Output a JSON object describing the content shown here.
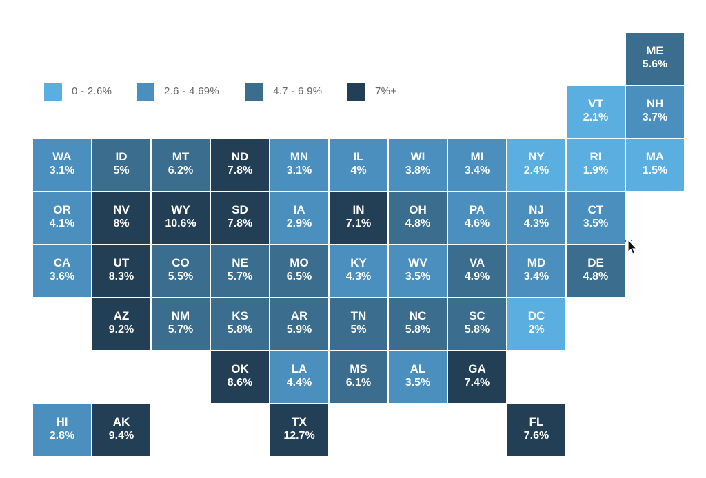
{
  "colors": {
    "bin1": "#5aaee0",
    "bin2": "#4a8fbd",
    "bin3": "#3a6d8e",
    "bin4": "#233f56"
  },
  "legend": [
    {
      "label": "0 - 2.6%",
      "bin": "bin1"
    },
    {
      "label": "2.6 - 4.69%",
      "bin": "bin2"
    },
    {
      "label": "4.7 - 6.9%",
      "bin": "bin3"
    },
    {
      "label": "7%+",
      "bin": "bin4"
    }
  ],
  "states": [
    {
      "abbr": "ME",
      "value": "5.6%",
      "col": 10,
      "row": 0,
      "bin": "bin3"
    },
    {
      "abbr": "VT",
      "value": "2.1%",
      "col": 9,
      "row": 1,
      "bin": "bin1"
    },
    {
      "abbr": "NH",
      "value": "3.7%",
      "col": 10,
      "row": 1,
      "bin": "bin2"
    },
    {
      "abbr": "WA",
      "value": "3.1%",
      "col": 0,
      "row": 2,
      "bin": "bin2"
    },
    {
      "abbr": "ID",
      "value": "5%",
      "col": 1,
      "row": 2,
      "bin": "bin3"
    },
    {
      "abbr": "MT",
      "value": "6.2%",
      "col": 2,
      "row": 2,
      "bin": "bin3"
    },
    {
      "abbr": "ND",
      "value": "7.8%",
      "col": 3,
      "row": 2,
      "bin": "bin4"
    },
    {
      "abbr": "MN",
      "value": "3.1%",
      "col": 4,
      "row": 2,
      "bin": "bin2"
    },
    {
      "abbr": "IL",
      "value": "4%",
      "col": 5,
      "row": 2,
      "bin": "bin2"
    },
    {
      "abbr": "WI",
      "value": "3.8%",
      "col": 6,
      "row": 2,
      "bin": "bin2"
    },
    {
      "abbr": "MI",
      "value": "3.4%",
      "col": 7,
      "row": 2,
      "bin": "bin2"
    },
    {
      "abbr": "NY",
      "value": "2.4%",
      "col": 8,
      "row": 2,
      "bin": "bin1"
    },
    {
      "abbr": "RI",
      "value": "1.9%",
      "col": 9,
      "row": 2,
      "bin": "bin1"
    },
    {
      "abbr": "MA",
      "value": "1.5%",
      "col": 10,
      "row": 2,
      "bin": "bin1"
    },
    {
      "abbr": "OR",
      "value": "4.1%",
      "col": 0,
      "row": 3,
      "bin": "bin2"
    },
    {
      "abbr": "NV",
      "value": "8%",
      "col": 1,
      "row": 3,
      "bin": "bin4"
    },
    {
      "abbr": "WY",
      "value": "10.6%",
      "col": 2,
      "row": 3,
      "bin": "bin4"
    },
    {
      "abbr": "SD",
      "value": "7.8%",
      "col": 3,
      "row": 3,
      "bin": "bin4"
    },
    {
      "abbr": "IA",
      "value": "2.9%",
      "col": 4,
      "row": 3,
      "bin": "bin2"
    },
    {
      "abbr": "IN",
      "value": "7.1%",
      "col": 5,
      "row": 3,
      "bin": "bin4"
    },
    {
      "abbr": "OH",
      "value": "4.8%",
      "col": 6,
      "row": 3,
      "bin": "bin3"
    },
    {
      "abbr": "PA",
      "value": "4.6%",
      "col": 7,
      "row": 3,
      "bin": "bin2"
    },
    {
      "abbr": "NJ",
      "value": "4.3%",
      "col": 8,
      "row": 3,
      "bin": "bin2"
    },
    {
      "abbr": "CT",
      "value": "3.5%",
      "col": 9,
      "row": 3,
      "bin": "bin2"
    },
    {
      "abbr": "CA",
      "value": "3.6%",
      "col": 0,
      "row": 4,
      "bin": "bin2"
    },
    {
      "abbr": "UT",
      "value": "8.3%",
      "col": 1,
      "row": 4,
      "bin": "bin4"
    },
    {
      "abbr": "CO",
      "value": "5.5%",
      "col": 2,
      "row": 4,
      "bin": "bin3"
    },
    {
      "abbr": "NE",
      "value": "5.7%",
      "col": 3,
      "row": 4,
      "bin": "bin3"
    },
    {
      "abbr": "MO",
      "value": "6.5%",
      "col": 4,
      "row": 4,
      "bin": "bin3"
    },
    {
      "abbr": "KY",
      "value": "4.3%",
      "col": 5,
      "row": 4,
      "bin": "bin2"
    },
    {
      "abbr": "WV",
      "value": "3.5%",
      "col": 6,
      "row": 4,
      "bin": "bin2"
    },
    {
      "abbr": "VA",
      "value": "4.9%",
      "col": 7,
      "row": 4,
      "bin": "bin3"
    },
    {
      "abbr": "MD",
      "value": "3.4%",
      "col": 8,
      "row": 4,
      "bin": "bin2"
    },
    {
      "abbr": "DE",
      "value": "4.8%",
      "col": 9,
      "row": 4,
      "bin": "bin3"
    },
    {
      "abbr": "AZ",
      "value": "9.2%",
      "col": 1,
      "row": 5,
      "bin": "bin4"
    },
    {
      "abbr": "NM",
      "value": "5.7%",
      "col": 2,
      "row": 5,
      "bin": "bin3"
    },
    {
      "abbr": "KS",
      "value": "5.8%",
      "col": 3,
      "row": 5,
      "bin": "bin3"
    },
    {
      "abbr": "AR",
      "value": "5.9%",
      "col": 4,
      "row": 5,
      "bin": "bin3"
    },
    {
      "abbr": "TN",
      "value": "5%",
      "col": 5,
      "row": 5,
      "bin": "bin3"
    },
    {
      "abbr": "NC",
      "value": "5.8%",
      "col": 6,
      "row": 5,
      "bin": "bin3"
    },
    {
      "abbr": "SC",
      "value": "5.8%",
      "col": 7,
      "row": 5,
      "bin": "bin3"
    },
    {
      "abbr": "DC",
      "value": "2%",
      "col": 8,
      "row": 5,
      "bin": "bin1"
    },
    {
      "abbr": "OK",
      "value": "8.6%",
      "col": 3,
      "row": 6,
      "bin": "bin4"
    },
    {
      "abbr": "LA",
      "value": "4.4%",
      "col": 4,
      "row": 6,
      "bin": "bin2"
    },
    {
      "abbr": "MS",
      "value": "6.1%",
      "col": 5,
      "row": 6,
      "bin": "bin3"
    },
    {
      "abbr": "AL",
      "value": "3.5%",
      "col": 6,
      "row": 6,
      "bin": "bin2"
    },
    {
      "abbr": "GA",
      "value": "7.4%",
      "col": 7,
      "row": 6,
      "bin": "bin4"
    },
    {
      "abbr": "HI",
      "value": "2.8%",
      "col": 0,
      "row": 7,
      "bin": "bin2"
    },
    {
      "abbr": "AK",
      "value": "9.4%",
      "col": 1,
      "row": 7,
      "bin": "bin4"
    },
    {
      "abbr": "TX",
      "value": "12.7%",
      "col": 4,
      "row": 7,
      "bin": "bin4"
    },
    {
      "abbr": "FL",
      "value": "7.6%",
      "col": 8,
      "row": 7,
      "bin": "bin4"
    }
  ]
}
